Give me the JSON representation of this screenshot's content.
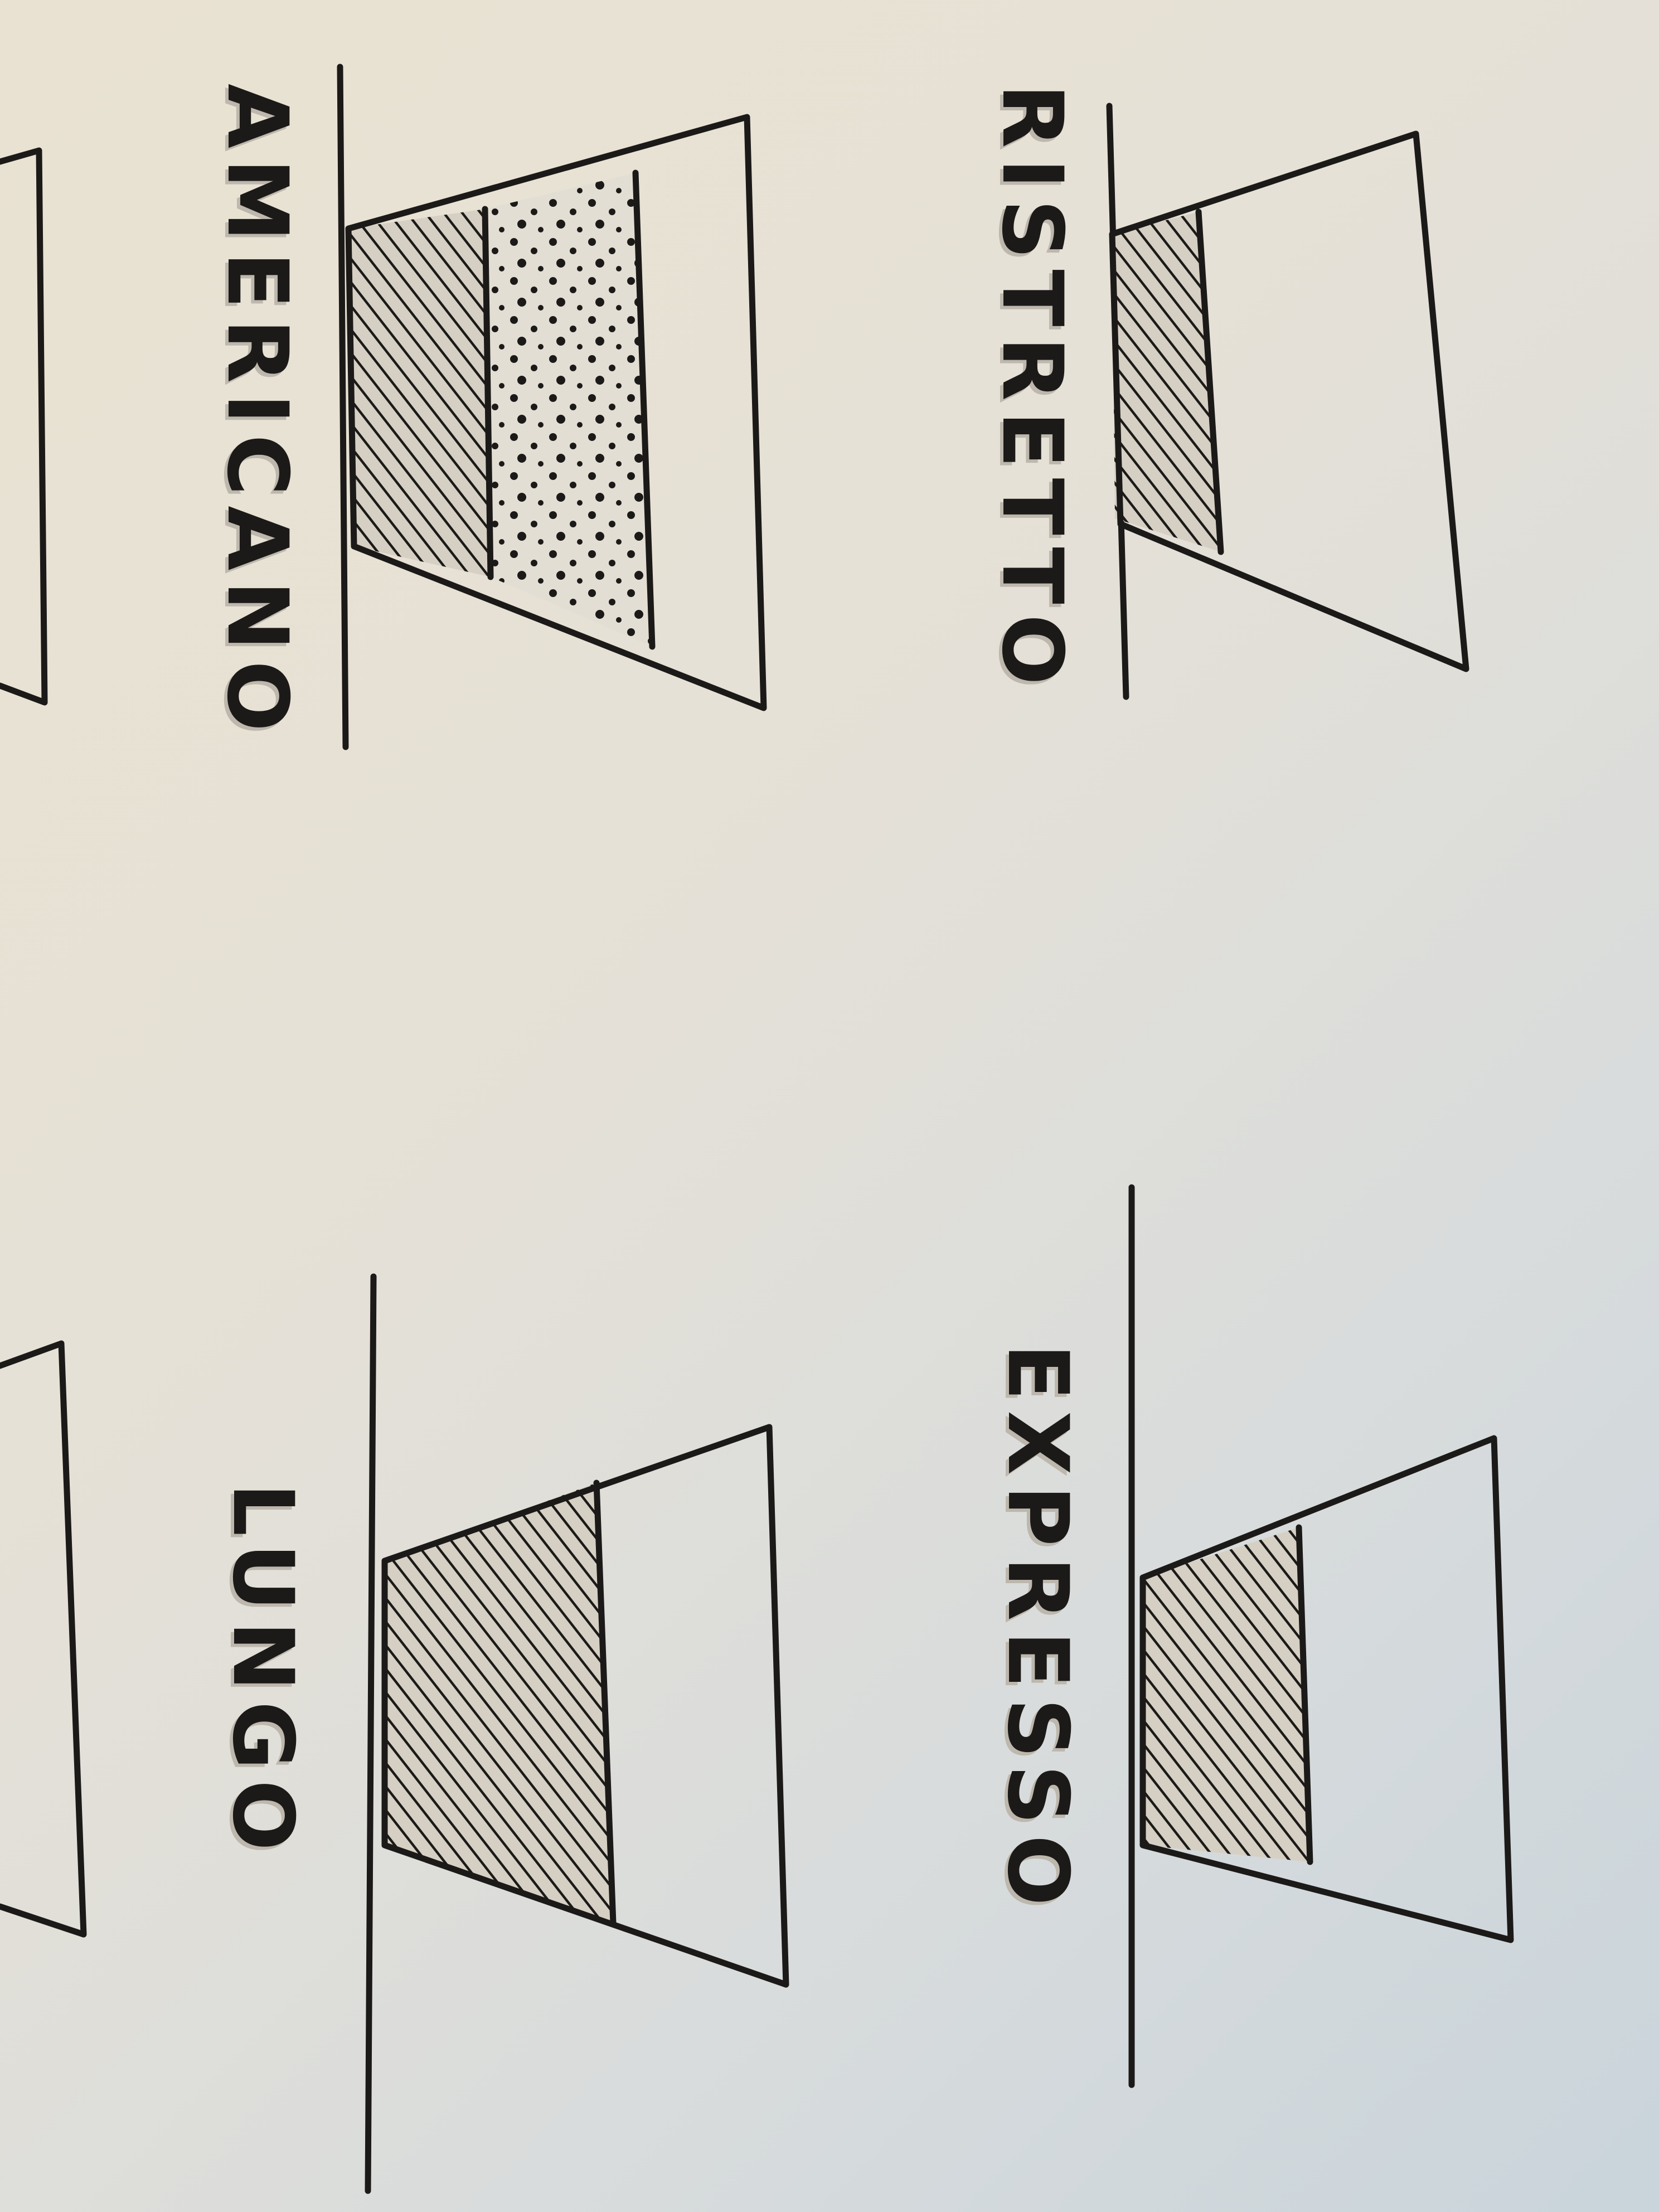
{
  "cups": [
    {
      "id": "ristretto",
      "label": "RISTRETTO",
      "layers": [
        "coffee"
      ]
    },
    {
      "id": "expresso",
      "label": "EXPRESSO",
      "layers": [
        "coffee"
      ]
    },
    {
      "id": "americano",
      "label": "AMERICANO",
      "layers": [
        "coffee",
        "dotted"
      ]
    },
    {
      "id": "lungo",
      "label": "LUNGO",
      "layers": [
        "coffee"
      ]
    }
  ],
  "colors": {
    "ink": "#1c1a18",
    "paper": "#e6e1d6"
  }
}
